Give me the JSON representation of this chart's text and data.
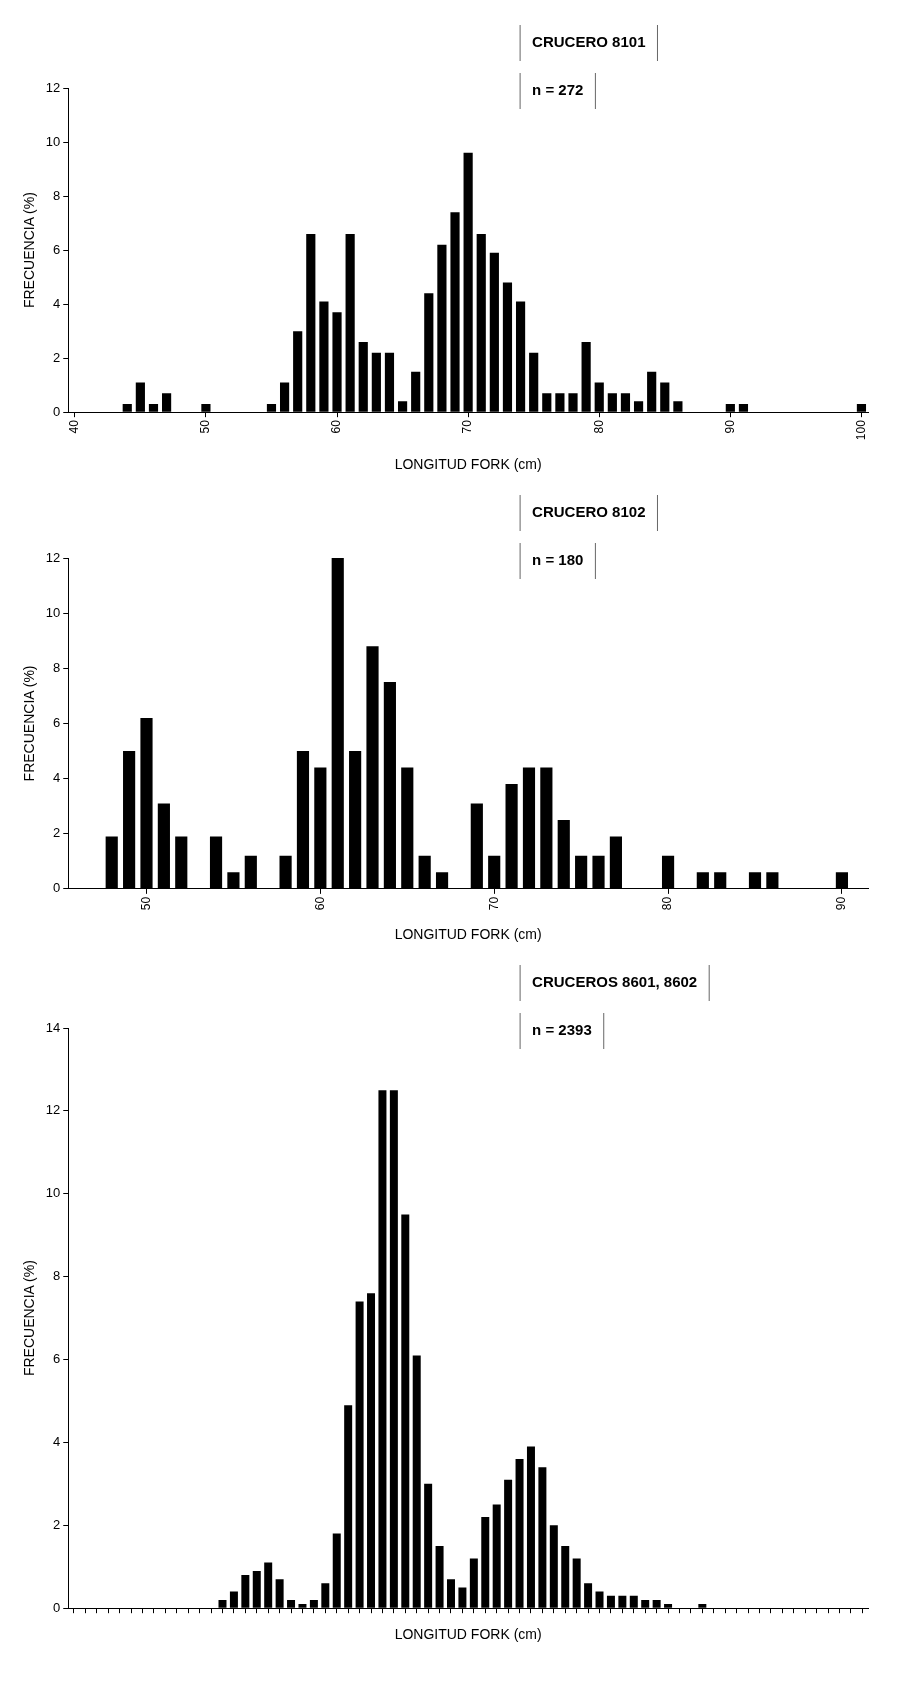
{
  "chart_data": [
    {
      "type": "bar",
      "xlabel": "LONGITUD FORK (cm)",
      "ylabel": "FRECUENCIA (%)",
      "annotations": [
        "CRUCERO 8101",
        "n = 272"
      ],
      "color": "#000000",
      "categories": [
        "40",
        null,
        null,
        null,
        null,
        null,
        null,
        null,
        null,
        null,
        "50",
        null,
        null,
        null,
        null,
        null,
        null,
        null,
        null,
        null,
        "60",
        null,
        null,
        null,
        null,
        null,
        null,
        null,
        null,
        null,
        "70",
        null,
        null,
        null,
        null,
        null,
        null,
        null,
        null,
        null,
        "80",
        null,
        null,
        null,
        null,
        null,
        null,
        null,
        null,
        null,
        "90",
        null,
        null,
        null,
        null,
        null,
        null,
        null,
        null,
        null,
        "100"
      ],
      "values": [
        null,
        null,
        null,
        null,
        0.3,
        1.1,
        0.3,
        0.7,
        0,
        0,
        0.3,
        0,
        0,
        0,
        0,
        0.3,
        1.1,
        3.0,
        6.6,
        4.1,
        3.7,
        6.6,
        2.6,
        2.2,
        2.2,
        0.4,
        1.5,
        4.4,
        6.2,
        7.4,
        9.6,
        6.6,
        5.9,
        4.8,
        4.1,
        2.2,
        0.7,
        0.7,
        0.7,
        2.6,
        1.1,
        0.7,
        0.7,
        0.4,
        1.5,
        1.1,
        0.4,
        0,
        0,
        0,
        0.3,
        0.3,
        0,
        0,
        0,
        0,
        0,
        0,
        0,
        0,
        0.3
      ],
      "ylim": [
        0,
        12
      ],
      "yticks": [
        0,
        2,
        4,
        6,
        8,
        10,
        12
      ],
      "grid": false,
      "legend": false
    },
    {
      "type": "bar",
      "xlabel": "LONGITUD FORK (cm)",
      "ylabel": "FRECUENCIA (%)",
      "annotations": [
        "CRUCERO 8102",
        "n = 180"
      ],
      "color": "#000000",
      "categories": [
        null,
        null,
        null,
        null,
        "50",
        null,
        null,
        null,
        null,
        null,
        null,
        null,
        null,
        null,
        "60",
        null,
        null,
        null,
        null,
        null,
        null,
        null,
        null,
        null,
        "70",
        null,
        null,
        null,
        null,
        null,
        null,
        null,
        null,
        null,
        "80",
        null,
        null,
        null,
        null,
        null,
        null,
        null,
        null,
        null,
        "90",
        null
      ],
      "values": [
        null,
        null,
        1.9,
        5.0,
        6.2,
        3.1,
        1.9,
        0,
        1.9,
        0.6,
        1.2,
        0,
        1.2,
        5.0,
        4.4,
        12.0,
        5.0,
        8.8,
        7.5,
        4.4,
        1.2,
        0.6,
        0,
        3.1,
        1.2,
        3.8,
        4.4,
        4.4,
        2.5,
        1.2,
        1.2,
        1.9,
        0,
        0,
        1.2,
        0,
        0.6,
        0.6,
        0,
        0.6,
        0.6,
        0,
        0,
        0,
        0.6,
        null
      ],
      "ylim": [
        0,
        12
      ],
      "yticks": [
        0,
        2,
        4,
        6,
        8,
        10,
        12
      ],
      "grid": false,
      "legend": false
    },
    {
      "type": "bar",
      "xlabel": "LONGITUD FORK (cm)",
      "ylabel": "FRECUENCIA (%)",
      "annotations": [
        "CRUCEROS 8601, 8602",
        "n = 2393"
      ],
      "color": "#000000",
      "categories": [
        null,
        null,
        null,
        null,
        null,
        null,
        null,
        null,
        null,
        null,
        null,
        null,
        null,
        null,
        null,
        null,
        null,
        null,
        null,
        null,
        null,
        null,
        null,
        null,
        null,
        null,
        null,
        null,
        null,
        null,
        null,
        null,
        null,
        null,
        null,
        null,
        null,
        null,
        null,
        null,
        null,
        null,
        null,
        null,
        null,
        null,
        null,
        null,
        null,
        null,
        null,
        null,
        null,
        null,
        null,
        null,
        null,
        null,
        null,
        null,
        null,
        null,
        null,
        null,
        null,
        null,
        null,
        null,
        null,
        null
      ],
      "values": [
        0,
        0,
        0,
        0,
        0,
        0,
        0,
        0,
        0,
        0,
        0,
        0,
        0,
        0.2,
        0.4,
        0.8,
        0.9,
        1.1,
        0.7,
        0.2,
        0.1,
        0.2,
        0.6,
        1.8,
        4.9,
        7.4,
        7.6,
        12.5,
        12.5,
        9.5,
        6.1,
        3.0,
        1.5,
        0.7,
        0.5,
        1.2,
        2.2,
        2.5,
        3.1,
        3.6,
        3.9,
        3.4,
        2.0,
        1.5,
        1.2,
        0.6,
        0.4,
        0.3,
        0.3,
        0.3,
        0.2,
        0.2,
        0.1,
        0,
        0,
        0.1,
        0,
        0,
        0,
        0,
        0,
        0,
        0,
        0,
        0,
        0,
        0,
        0,
        0,
        0
      ],
      "ylim": [
        0,
        14
      ],
      "yticks": [
        0,
        2,
        4,
        6,
        8,
        10,
        12,
        14
      ],
      "tick_labels": "y",
      "grid": false,
      "legend": false
    }
  ]
}
